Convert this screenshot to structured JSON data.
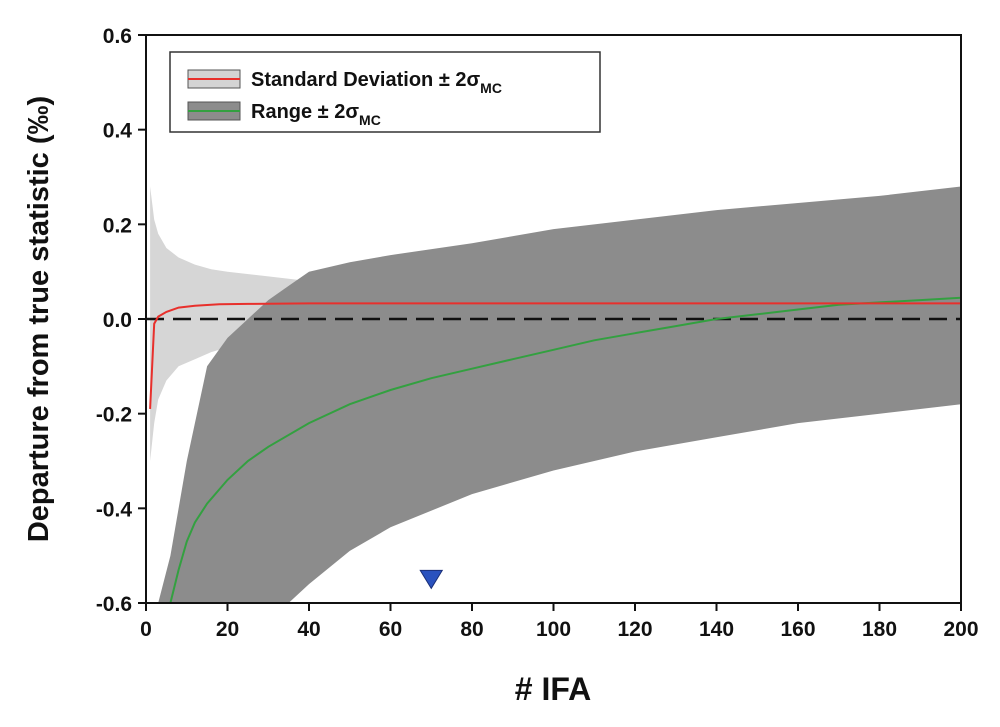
{
  "chart_data": {
    "type": "line",
    "title": "",
    "xlabel": "# IFA",
    "ylabel": "Departure from true statistic (‰)",
    "xlim": [
      0,
      200
    ],
    "ylim": [
      -0.6,
      0.6
    ],
    "xticks": [
      0,
      20,
      40,
      60,
      80,
      100,
      120,
      140,
      160,
      180,
      200
    ],
    "yticks": [
      -0.6,
      -0.4,
      -0.2,
      0.0,
      0.2,
      0.4,
      0.6
    ],
    "xtick_labels": [
      "0",
      "20",
      "40",
      "60",
      "80",
      "100",
      "120",
      "140",
      "160",
      "180",
      "200"
    ],
    "ytick_labels": [
      "-0.6",
      "-0.4",
      "-0.2",
      "0.0",
      "0.2",
      "0.4",
      "0.6"
    ],
    "reference_line": {
      "y": 0.0,
      "style": "dashed",
      "color": "#111111"
    },
    "marker": {
      "x": 70,
      "y": -0.565,
      "shape": "downward-triangle",
      "color": "#2a52be"
    },
    "legend": {
      "placement": "top-left",
      "entries": [
        {
          "main": "Standard Deviation ± 2σ",
          "sub": "MC",
          "line_color": "#e8302c",
          "fill_color": "#d4d4d4"
        },
        {
          "main": "Range ± 2σ",
          "sub": "MC",
          "line_color": "#33a040",
          "fill_color": "#8c8c8c"
        }
      ]
    },
    "series": [
      {
        "name": "Standard Deviation",
        "color": "#e8302c",
        "x": [
          1,
          2,
          3,
          5,
          8,
          12,
          18,
          25,
          40,
          60,
          100,
          150,
          200
        ],
        "values": [
          -0.19,
          -0.01,
          0.005,
          0.015,
          0.024,
          0.028,
          0.031,
          0.032,
          0.033,
          0.033,
          0.033,
          0.033,
          0.033
        ]
      },
      {
        "name": "Standard Deviation ± 2σMC band",
        "color": "#d4d4d4",
        "x": [
          1,
          2,
          3,
          5,
          8,
          12,
          16,
          20,
          30,
          40,
          60,
          100,
          150,
          200
        ],
        "upper": [
          0.28,
          0.21,
          0.18,
          0.15,
          0.13,
          0.115,
          0.105,
          0.1,
          0.09,
          0.08,
          0.07,
          0.062,
          0.057,
          0.053
        ],
        "lower": [
          -0.3,
          -0.22,
          -0.17,
          -0.13,
          -0.1,
          -0.085,
          -0.07,
          -0.06,
          -0.045,
          -0.035,
          -0.025,
          -0.015,
          -0.01,
          -0.005
        ]
      },
      {
        "name": "Range",
        "color": "#33a040",
        "x": [
          6,
          8,
          10,
          12,
          15,
          20,
          25,
          30,
          40,
          50,
          60,
          70,
          80,
          90,
          100,
          110,
          120,
          130,
          140,
          150,
          160,
          170,
          180,
          190,
          200
        ],
        "values": [
          -0.6,
          -0.53,
          -0.47,
          -0.43,
          -0.39,
          -0.34,
          -0.3,
          -0.27,
          -0.22,
          -0.18,
          -0.15,
          -0.125,
          -0.105,
          -0.085,
          -0.065,
          -0.045,
          -0.03,
          -0.015,
          0.0,
          0.01,
          0.02,
          0.03,
          0.035,
          0.04,
          0.045
        ]
      },
      {
        "name": "Range ± 2σMC band",
        "color": "#8c8c8c",
        "x": [
          3,
          6,
          10,
          15,
          20,
          25,
          30,
          35,
          40,
          50,
          60,
          80,
          100,
          120,
          140,
          160,
          180,
          200
        ],
        "upper": [
          -0.6,
          -0.5,
          -0.3,
          -0.1,
          -0.04,
          0.0,
          0.04,
          0.07,
          0.1,
          0.12,
          0.135,
          0.16,
          0.19,
          0.21,
          0.23,
          0.245,
          0.26,
          0.28
        ],
        "lower": [
          -0.6,
          -0.6,
          -0.6,
          -0.6,
          -0.6,
          -0.6,
          -0.6,
          -0.6,
          -0.56,
          -0.49,
          -0.44,
          -0.37,
          -0.32,
          -0.28,
          -0.25,
          -0.22,
          -0.2,
          -0.18
        ]
      }
    ]
  }
}
